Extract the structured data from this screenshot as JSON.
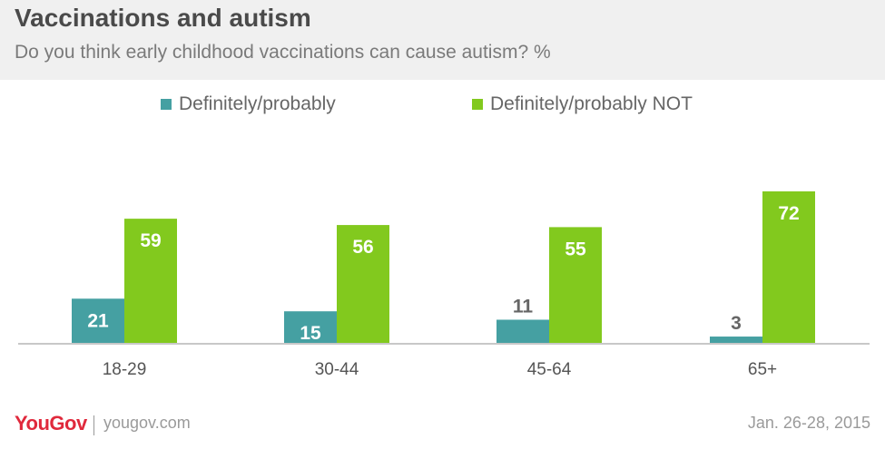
{
  "header": {
    "title": "Vaccinations and autism",
    "subtitle": "Do you think early childhood vaccinations can cause autism? %"
  },
  "legend": [
    {
      "label": "Definitely/probably",
      "color": "#45a0a2"
    },
    {
      "label": "Definitely/probably NOT",
      "color": "#82c91e"
    }
  ],
  "chart_data": {
    "type": "bar",
    "title": "Vaccinations and autism",
    "subtitle": "Do you think early childhood vaccinations can cause autism? %",
    "categories": [
      "18-29",
      "30-44",
      "45-64",
      "65+"
    ],
    "series": [
      {
        "name": "Definitely/probably",
        "color": "#45a0a2",
        "values": [
          21,
          15,
          11,
          3
        ]
      },
      {
        "name": "Definitely/probably NOT",
        "color": "#82c91e",
        "values": [
          59,
          56,
          55,
          72
        ]
      }
    ],
    "xlabel": "",
    "ylabel": "",
    "ylim": [
      0,
      80
    ],
    "grid": false,
    "legend_position": "top"
  },
  "footer": {
    "brand": "YouGov",
    "site": "yougov.com",
    "date": "Jan. 26-28, 2015"
  }
}
